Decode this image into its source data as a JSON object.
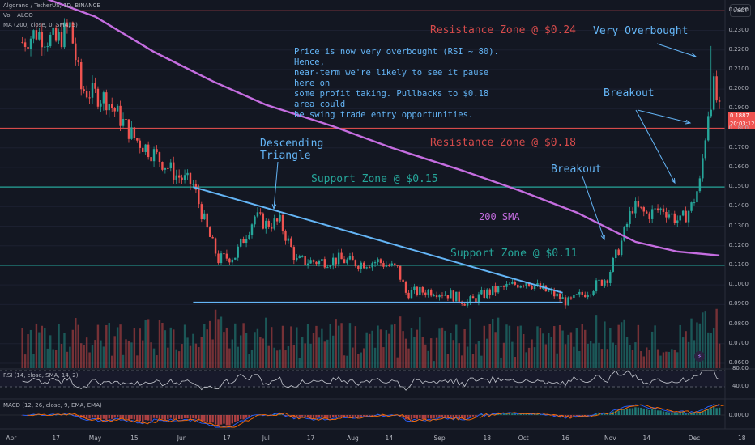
{
  "header": {
    "symbol_line": "Algorand / TetherUS, 1D, BINANCE",
    "volume_legend": "Vol · ALGO",
    "ma_legend": "MA (200, close, 0, SMA, 5)",
    "currency_button": "USDT"
  },
  "colors": {
    "background": "#131722",
    "up": "#26a69a",
    "down": "#ef5350",
    "resistance": "#d64b4b",
    "support": "#26a69a",
    "trendline": "#64b5f6",
    "sma": "#c56de0",
    "macd": "#2962ff",
    "signal": "#ff6d00"
  },
  "last_price": {
    "value": "0.1887",
    "countdown": "20:03:12"
  },
  "annotations": {
    "resistance_024": "Resistance Zone @ $0.24",
    "resistance_018": "Resistance Zone @ $0.18",
    "support_015": "Support Zone @ $0.15",
    "support_011": "Support Zone @ $0.11",
    "very_overbought": "Very Overbought",
    "breakout_1": "Breakout",
    "breakout_2": "Breakout",
    "descending_triangle": "Descending\nTriangle",
    "sma_label": "200 SMA",
    "note": "Price is now very overbought (RSI ~ 80). Hence,\nnear-term we're likely to see it pause here on\nsome profit taking. Pullbacks to $0.18 area could\nbe swing trade entry opportunities."
  },
  "rsi": {
    "legend": "RSI (14, close, SMA, 14, 2)",
    "axis": [
      "80.00",
      "40.00"
    ]
  },
  "macd": {
    "legend": "MACD (12, 26, close, 9, EMA, EMA)",
    "axis": [
      "0.0000"
    ]
  },
  "chart_data": {
    "type": "candlestick",
    "title": "Algorand / TetherUS, 1D, BINANCE",
    "y_axis_ticks": [
      "0.2400",
      "0.2300",
      "0.2200",
      "0.2100",
      "0.2000",
      "0.1900",
      "0.1800",
      "0.1700",
      "0.1600",
      "0.1500",
      "0.1400",
      "0.1300",
      "0.1200",
      "0.1100",
      "0.1000",
      "0.0900",
      "0.0800",
      "0.0700",
      "0.0600"
    ],
    "ylim": [
      0.0575,
      0.2455
    ],
    "x_axis_ticks": [
      "Apr",
      "17",
      "May",
      "15",
      "Jun",
      "17",
      "Jul",
      "17",
      "Aug",
      "14",
      "Sep",
      "18",
      "Oct",
      "16",
      "Nov",
      "14",
      "Dec",
      "18"
    ],
    "horizontal_levels": [
      {
        "name": "Resistance Zone @ $0.24",
        "value": 0.24
      },
      {
        "name": "Resistance Zone @ $0.18",
        "value": 0.18
      },
      {
        "name": "Support Zone @ $0.15",
        "value": 0.15
      },
      {
        "name": "Support Zone @ $0.11",
        "value": 0.11
      }
    ],
    "price_path": [
      [
        "Apr 05",
        0.224
      ],
      [
        "Apr 10",
        0.229
      ],
      [
        "Apr 17",
        0.224
      ],
      [
        "Apr 22",
        0.232
      ],
      [
        "Apr 26",
        0.2
      ],
      [
        "May 05",
        0.195
      ],
      [
        "May 10",
        0.185
      ],
      [
        "May 15",
        0.175
      ],
      [
        "May 22",
        0.167
      ],
      [
        "May 30",
        0.156
      ],
      [
        "Jun 05",
        0.151
      ],
      [
        "Jun 10",
        0.128
      ],
      [
        "Jun 14",
        0.113
      ],
      [
        "Jun 20",
        0.115
      ],
      [
        "Jun 27",
        0.135
      ],
      [
        "Jul 01",
        0.131
      ],
      [
        "Jul 06",
        0.132
      ],
      [
        "Jul 12",
        0.112
      ],
      [
        "Jul 20",
        0.112
      ],
      [
        "Jul 27",
        0.113
      ],
      [
        "Aug 03",
        0.111
      ],
      [
        "Aug 10",
        0.112
      ],
      [
        "Aug 17",
        0.108
      ],
      [
        "Aug 20",
        0.096
      ],
      [
        "Aug 30",
        0.097
      ],
      [
        "Sep 05",
        0.095
      ],
      [
        "Sep 11",
        0.091
      ],
      [
        "Sep 18",
        0.096
      ],
      [
        "Sep 25",
        0.099
      ],
      [
        "Oct 02",
        0.102
      ],
      [
        "Oct 07",
        0.098
      ],
      [
        "Oct 12",
        0.095
      ],
      [
        "Oct 17",
        0.091
      ],
      [
        "Oct 24",
        0.097
      ],
      [
        "Oct 31",
        0.104
      ],
      [
        "Nov 05",
        0.122
      ],
      [
        "Nov 09",
        0.14
      ],
      [
        "Nov 14",
        0.136
      ],
      [
        "Nov 20",
        0.139
      ],
      [
        "Nov 26",
        0.132
      ],
      [
        "Nov 30",
        0.14
      ],
      [
        "Dec 03",
        0.152
      ],
      [
        "Dec 06",
        0.189
      ],
      [
        "Dec 08",
        0.201
      ],
      [
        "Dec 10",
        0.188
      ]
    ],
    "sma_200_path": [
      [
        "Apr 10",
        0.248
      ],
      [
        "May 01",
        0.237
      ],
      [
        "May 22",
        0.219
      ],
      [
        "Jun 12",
        0.204
      ],
      [
        "Jul 01",
        0.192
      ],
      [
        "Jul 25",
        0.181
      ],
      [
        "Aug 15",
        0.17
      ],
      [
        "Sep 10",
        0.158
      ],
      [
        "Sep 30",
        0.148
      ],
      [
        "Oct 20",
        0.137
      ],
      [
        "Nov 10",
        0.122
      ],
      [
        "Nov 25",
        0.117
      ],
      [
        "Dec 10",
        0.115
      ]
    ],
    "annotated_wick_high": [
      "Dec 07",
      0.222
    ],
    "descending_triangle": {
      "upper_from": [
        "Jun 05",
        0.15
      ],
      "upper_to": [
        "Oct 15",
        0.096
      ],
      "base": 0.091,
      "base_from": "Jun 05",
      "base_to": "Oct 15"
    }
  }
}
